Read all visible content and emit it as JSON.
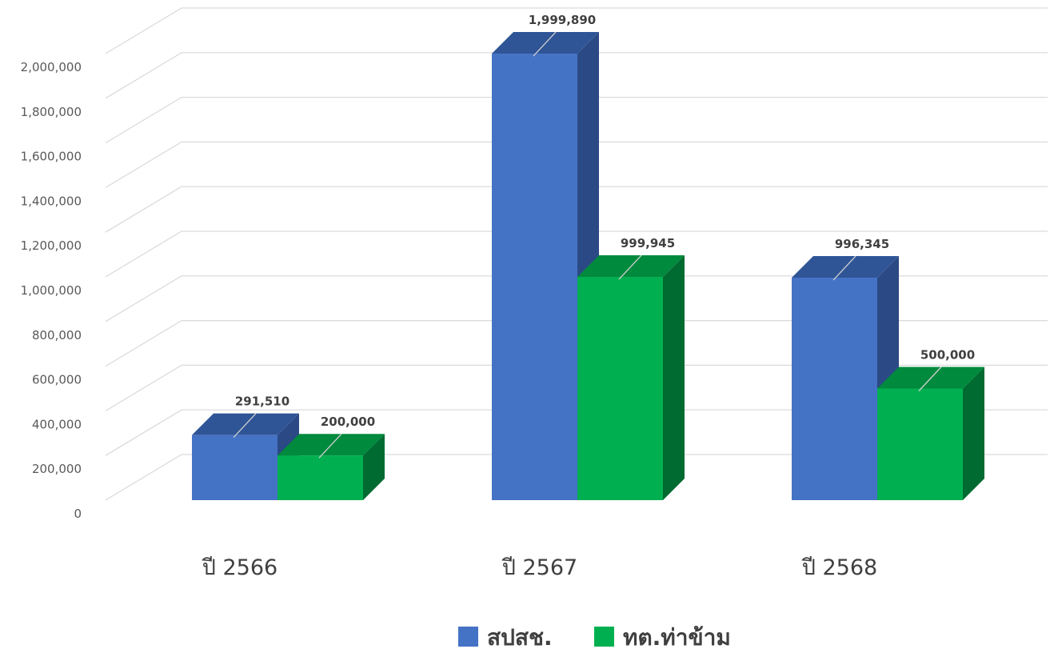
{
  "chart_data": {
    "type": "bar",
    "categories": [
      "ปี 2566",
      "ปี 2567",
      "ปี 2568"
    ],
    "series": [
      {
        "name": "สปสช.",
        "values": [
          291510,
          1999890,
          996345
        ],
        "labels": [
          "291,510",
          "1,999,890",
          "996,345"
        ],
        "color": "#4472C4",
        "side_color": "#2B4A85",
        "top_color": "#2F5597"
      },
      {
        "name": "ทต.ท่าข้าม",
        "values": [
          200000,
          999945,
          500000
        ],
        "labels": [
          "200,000",
          "999,945",
          "500,000"
        ],
        "color": "#00B050",
        "side_color": "#006B30",
        "top_color": "#008A3E"
      }
    ],
    "yticks": [
      "0",
      "200,000",
      "400,000",
      "600,000",
      "800,000",
      "1,000,000",
      "1,200,000",
      "1,400,000",
      "1,600,000",
      "1,800,000",
      "2,000,000"
    ],
    "ylim": [
      0,
      2000000
    ],
    "title": "",
    "xlabel": "",
    "ylabel": "",
    "grid": true,
    "legend": "bottom",
    "style": "3d-clustered-column"
  }
}
